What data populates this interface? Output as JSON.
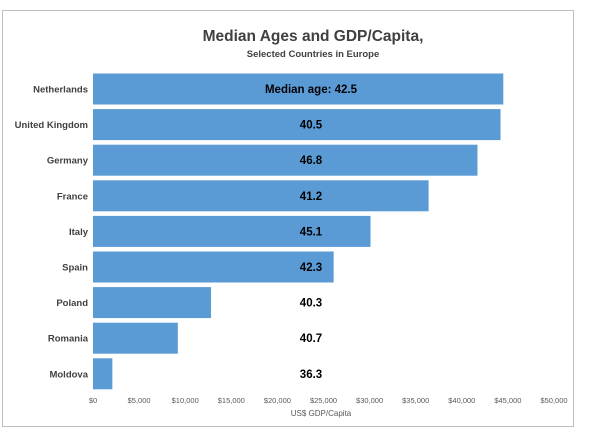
{
  "chart_data": {
    "type": "bar",
    "orientation": "horizontal",
    "title": "Median Ages and GDP/Capita,",
    "subtitle": "Selected Countries in Europe",
    "xlabel": "US$ GDP/Capita",
    "ylabel": "",
    "xlim": [
      0,
      50000
    ],
    "x_ticks": [
      "$0",
      "$5,000",
      "$10,000",
      "$15,000",
      "$20,000",
      "$25,000",
      "$30,000",
      "$35,000",
      "$40,000",
      "$45,000",
      "$50,000"
    ],
    "x_tick_values": [
      0,
      5000,
      10000,
      15000,
      20000,
      25000,
      30000,
      35000,
      40000,
      45000,
      50000
    ],
    "grid": false,
    "bar_color": "#5b9bd5",
    "categories": [
      "Netherlands",
      "United Kingdom",
      "Germany",
      "France",
      "Italy",
      "Spain",
      "Poland",
      "Romania",
      "Moldova"
    ],
    "values": [
      44500,
      44200,
      41700,
      36400,
      30100,
      26100,
      12800,
      9200,
      2100
    ],
    "data_labels": [
      "Median age: 42.5",
      "40.5",
      "46.8",
      "41.2",
      "45.1",
      "42.3",
      "40.3",
      "40.7",
      "36.3"
    ]
  }
}
